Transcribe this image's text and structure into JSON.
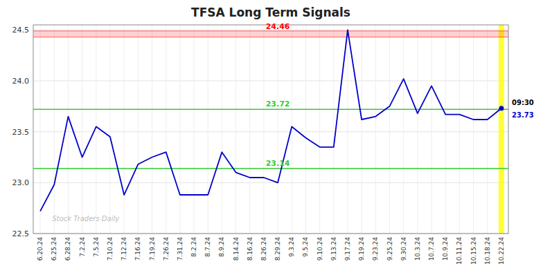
{
  "chart_data": {
    "type": "line",
    "title": "TFSA Long Term Signals",
    "categories": [
      "6.20.24",
      "6.25.24",
      "6.28.24",
      "7.2.24",
      "7.5.24",
      "7.10.24",
      "7.12.24",
      "7.16.24",
      "7.19.24",
      "7.26.24",
      "7.31.24",
      "8.2.24",
      "8.7.24",
      "8.9.24",
      "8.14.24",
      "8.16.24",
      "8.26.24",
      "8.29.24",
      "9.3.24",
      "9.5.24",
      "9.10.24",
      "9.13.24",
      "9.17.24",
      "9.19.24",
      "9.23.24",
      "9.25.24",
      "9.30.24",
      "10.3.24",
      "10.7.24",
      "10.9.24",
      "10.11.24",
      "10.15.24",
      "10.18.24",
      "10.22.24"
    ],
    "values": [
      22.72,
      22.98,
      23.65,
      23.25,
      23.55,
      23.45,
      22.88,
      23.18,
      23.25,
      23.3,
      22.88,
      22.88,
      22.88,
      23.3,
      23.1,
      23.05,
      23.05,
      23.0,
      23.55,
      23.44,
      23.35,
      23.35,
      24.5,
      23.62,
      23.65,
      23.75,
      24.02,
      23.68,
      23.95,
      23.67,
      23.67,
      23.62,
      23.62,
      23.73
    ],
    "color": "#0000cc",
    "ylim": [
      22.5,
      24.55
    ],
    "yticks": [
      22.5,
      {
        "value": 23,
        "label": "23.0"
      },
      23.5,
      {
        "value": 24,
        "label": "24.0"
      },
      24.5
    ],
    "grid": true,
    "resistance": {
      "value": 24.46,
      "band_lo": 24.43,
      "band_hi": 24.49,
      "color": "red"
    },
    "support": {
      "values": [
        23.72,
        23.14
      ],
      "color": "#33cc33"
    },
    "last": {
      "label": "09:30",
      "value": 23.73,
      "color": "#ffff00"
    },
    "watermark": "Stock Traders Daily"
  }
}
